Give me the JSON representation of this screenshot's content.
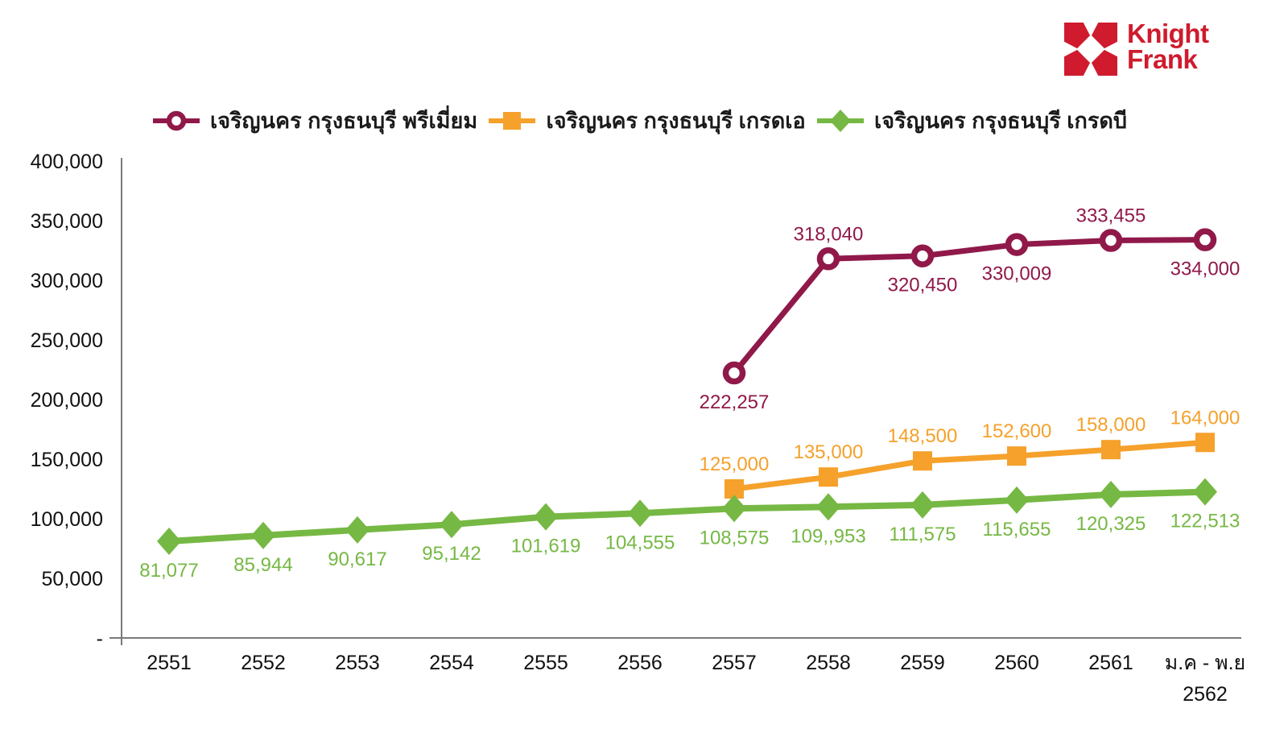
{
  "logo": {
    "line1": "Knight",
    "line2": "Frank",
    "color": "#CF1B2D"
  },
  "legend": {
    "items": [
      {
        "label": "เจริญนคร กรุงธนบุรี พรีเมี่ยม",
        "marker": "circle",
        "color": "#90194A"
      },
      {
        "label": "เจริญนคร กรุงธนบุรี เกรดเอ",
        "marker": "square",
        "color": "#F5A12B"
      },
      {
        "label": "เจริญนคร กรุงธนบุรี เกรดบี",
        "marker": "diamond",
        "color": "#76B844"
      }
    ]
  },
  "chart_data": {
    "type": "line",
    "title": "",
    "xlabel": "",
    "ylabel": "",
    "grid": false,
    "legend_position": "top",
    "ylim": [
      0,
      400000
    ],
    "ytick_values": [
      0,
      50000,
      100000,
      150000,
      200000,
      250000,
      300000,
      350000,
      400000
    ],
    "ytick_labels": [
      "-",
      "50,000",
      "100,000",
      "150,000",
      "200,000",
      "250,000",
      "300,000",
      "350,000",
      "400,000"
    ],
    "categories": [
      "2551",
      "2552",
      "2553",
      "2554",
      "2555",
      "2556",
      "2557",
      "2558",
      "2559",
      "2560",
      "2561",
      "ม.ค - พ.ย\n2562"
    ],
    "series": [
      {
        "name": "เจริญนคร กรุงธนบุรี พรีเมี่ยม",
        "marker": "circle",
        "color": "#90194A",
        "values": [
          null,
          null,
          null,
          null,
          null,
          null,
          222257,
          318040,
          320450,
          330009,
          333455,
          334000
        ],
        "data_labels": [
          null,
          null,
          null,
          null,
          null,
          null,
          "222,257",
          "318,040",
          "320,450",
          "330,009",
          "333,455",
          "334,000"
        ],
        "label_placement": [
          null,
          null,
          null,
          null,
          null,
          null,
          "below",
          "above",
          "below",
          "below",
          "above",
          "below"
        ]
      },
      {
        "name": "เจริญนคร กรุงธนบุรี เกรดเอ",
        "marker": "square",
        "color": "#F5A12B",
        "values": [
          null,
          null,
          null,
          null,
          null,
          null,
          125000,
          135000,
          148500,
          152600,
          158000,
          164000
        ],
        "data_labels": [
          null,
          null,
          null,
          null,
          null,
          null,
          "125,000",
          "135,000",
          "148,500",
          "152,600",
          "158,000",
          "164,000"
        ],
        "label_placement": [
          null,
          null,
          null,
          null,
          null,
          null,
          "above",
          "above",
          "above",
          "above",
          "above",
          "above"
        ]
      },
      {
        "name": "เจริญนคร กรุงธนบุรี เกรดบี",
        "marker": "diamond",
        "color": "#76B844",
        "values": [
          81077,
          85944,
          90617,
          95142,
          101619,
          104555,
          108575,
          109953,
          111575,
          115655,
          120325,
          122513
        ],
        "data_labels": [
          "81,077",
          "85,944",
          "90,617",
          "95,142",
          "101,619",
          "104,555",
          "108,575",
          "109,,953",
          "111,575",
          "115,655",
          "120,325",
          "122,513"
        ],
        "label_placement": [
          "below",
          "below",
          "below",
          "below",
          "below",
          "below",
          "below",
          "below",
          "below",
          "below",
          "below",
          "below"
        ]
      }
    ]
  }
}
